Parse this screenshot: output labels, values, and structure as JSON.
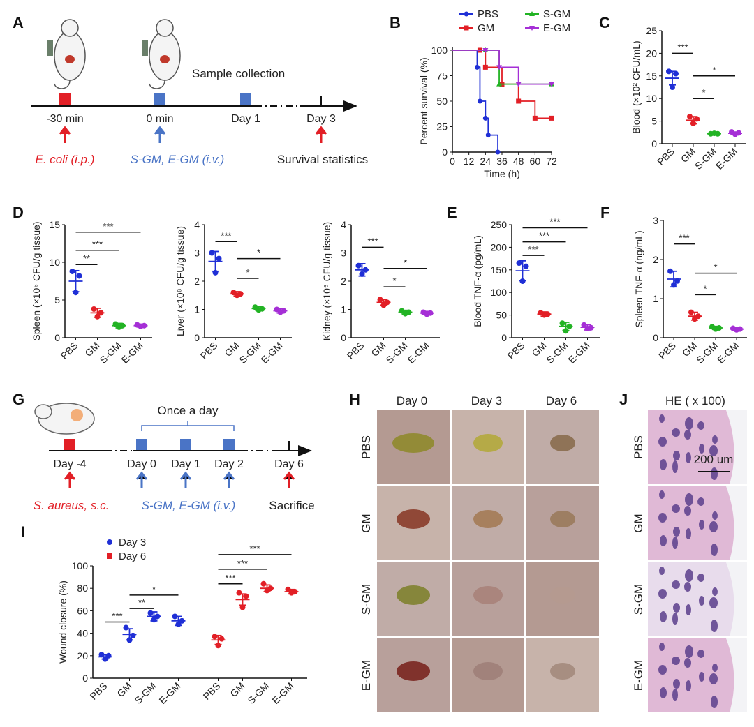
{
  "panels": {
    "A": {
      "label": "A",
      "timeline": [
        "-30 min",
        "0 min",
        "Day 1",
        "Day 3"
      ],
      "sample_collection": "Sample collection",
      "ecoli": "E. coli (i.p.)",
      "treat": "S-GM, E-GM (i.v.)",
      "survival": "Survival statistics"
    },
    "B": {
      "label": "B"
    },
    "C": {
      "label": "C"
    },
    "D": {
      "label": "D"
    },
    "E": {
      "label": "E"
    },
    "F": {
      "label": "F"
    },
    "G": {
      "label": "G",
      "once": "Once a day",
      "timeline": [
        "Day -4",
        "Day 0",
        "Day 1",
        "Day 2",
        "Day 6"
      ],
      "saureus": "S. aureus, s.c.",
      "treat": "S-GM, E-GM (i.v.)",
      "sacrifice": "Sacrifice"
    },
    "H": {
      "label": "H",
      "cols": [
        "Day 0",
        "Day 3",
        "Day 6"
      ],
      "rows": [
        "PBS",
        "GM",
        "S-GM",
        "E-GM"
      ]
    },
    "I": {
      "label": "I"
    },
    "J": {
      "label": "J",
      "title": "HE ( x 100)",
      "rows": [
        "PBS",
        "GM",
        "S-GM",
        "E-GM"
      ],
      "scale": "200 um"
    }
  },
  "colors": {
    "PBS": "#1f2fd6",
    "GM": "#e21f26",
    "S-GM": "#22b324",
    "E-GM": "#a52fd6"
  },
  "chart_data": [
    {
      "id": "B",
      "type": "line",
      "xlabel": "Time (h)",
      "ylabel": "Percent survival (%)",
      "xlim": [
        0,
        72
      ],
      "ylim": [
        0,
        100
      ],
      "xticks": [
        0,
        12,
        24,
        36,
        48,
        60,
        72
      ],
      "yticks": [
        0,
        25,
        50,
        75,
        100
      ],
      "legend": [
        "PBS",
        "GM",
        "S-GM",
        "E-GM"
      ],
      "legend_position": "top",
      "series": [
        {
          "name": "PBS",
          "x": [
            0,
            18,
            20,
            24,
            26,
            33
          ],
          "y": [
            100,
            83.3,
            50,
            33.3,
            16.7,
            0
          ]
        },
        {
          "name": "GM",
          "x": [
            0,
            20,
            24,
            36,
            48,
            60,
            72
          ],
          "y": [
            100,
            100,
            83.3,
            66.7,
            50,
            33.3,
            33.3
          ]
        },
        {
          "name": "S-GM",
          "x": [
            0,
            24,
            34,
            72
          ],
          "y": [
            100,
            100,
            66.7,
            66.7
          ]
        },
        {
          "name": "E-GM",
          "x": [
            0,
            24,
            34,
            48,
            72
          ],
          "y": [
            100,
            100,
            83.3,
            66.7,
            66.7
          ]
        }
      ]
    },
    {
      "id": "C",
      "type": "scatter",
      "ylabel": "Blood (×10² CFU/mL)",
      "ylim": [
        0,
        25
      ],
      "yticks": [
        0,
        5,
        10,
        15,
        20,
        25
      ],
      "categories": [
        "PBS",
        "GM",
        "S-GM",
        "E-GM"
      ],
      "means": [
        14.5,
        5.2,
        2.2,
        2.3
      ],
      "sd": [
        1.5,
        0.8,
        0.2,
        0.3
      ],
      "points": [
        [
          16,
          15.5,
          12.5
        ],
        [
          6,
          5.5,
          4.5
        ],
        [
          2.2,
          2.2,
          2.3
        ],
        [
          2.6,
          2.4,
          2.1
        ]
      ],
      "sig": [
        {
          "a": 0,
          "b": 1,
          "y": 20,
          "t": "***"
        },
        {
          "a": 1,
          "b": 2,
          "y": 10,
          "t": "*"
        },
        {
          "a": 1,
          "b": 3,
          "y": 15,
          "t": "*"
        }
      ]
    },
    {
      "id": "D1",
      "type": "scatter",
      "ylabel": "Spleen (×10⁶ CFU/g tissue)",
      "ylim": [
        0,
        15
      ],
      "yticks": [
        0,
        5,
        10,
        15
      ],
      "categories": [
        "PBS",
        "GM",
        "S-GM",
        "E-GM"
      ],
      "means": [
        7.5,
        3.3,
        1.6,
        1.6
      ],
      "sd": [
        1.4,
        0.6,
        0.3,
        0.2
      ],
      "points": [
        [
          8.8,
          8.2,
          6.0
        ],
        [
          3.8,
          3.3,
          2.8
        ],
        [
          1.8,
          1.6,
          1.4
        ],
        [
          1.7,
          1.6,
          1.5
        ]
      ],
      "sig": [
        {
          "a": 0,
          "b": 1,
          "y": 9.7,
          "t": "**"
        },
        {
          "a": 0,
          "b": 2,
          "y": 11.6,
          "t": "***"
        },
        {
          "a": 0,
          "b": 3,
          "y": 14.0,
          "t": "***"
        }
      ]
    },
    {
      "id": "D2",
      "type": "scatter",
      "ylabel": "Liver (×10⁸ CFU/g tissue)",
      "ylim": [
        0,
        4
      ],
      "yticks": [
        0,
        1,
        2,
        3,
        4
      ],
      "categories": [
        "PBS",
        "GM",
        "S-GM",
        "E-GM"
      ],
      "means": [
        2.7,
        1.55,
        1.03,
        0.95
      ],
      "sd": [
        0.35,
        0.08,
        0.07,
        0.08
      ],
      "points": [
        [
          3.0,
          2.8,
          2.3
        ],
        [
          1.6,
          1.55,
          1.5
        ],
        [
          1.08,
          1.02,
          0.98
        ],
        [
          1.0,
          0.95,
          0.9
        ]
      ],
      "sig": [
        {
          "a": 0,
          "b": 1,
          "y": 3.4,
          "t": "***"
        },
        {
          "a": 1,
          "b": 2,
          "y": 2.1,
          "t": "*"
        },
        {
          "a": 1,
          "b": 3,
          "y": 2.8,
          "t": "*"
        }
      ]
    },
    {
      "id": "D3",
      "type": "scatter",
      "ylabel": "Kidney (×10⁵ CFU/g tissue)",
      "ylim": [
        0,
        4
      ],
      "yticks": [
        0,
        1,
        2,
        3,
        4
      ],
      "categories": [
        "PBS",
        "GM",
        "S-GM",
        "E-GM"
      ],
      "means": [
        2.4,
        1.25,
        0.9,
        0.87
      ],
      "sd": [
        0.22,
        0.1,
        0.07,
        0.06
      ],
      "points": [
        [
          2.55,
          2.4,
          2.25
        ],
        [
          1.35,
          1.25,
          1.15
        ],
        [
          0.95,
          0.9,
          0.85
        ],
        [
          0.9,
          0.87,
          0.83
        ]
      ],
      "sig": [
        {
          "a": 0,
          "b": 1,
          "y": 3.2,
          "t": "***"
        },
        {
          "a": 1,
          "b": 2,
          "y": 1.8,
          "t": "*"
        },
        {
          "a": 1,
          "b": 3,
          "y": 2.45,
          "t": "*"
        }
      ]
    },
    {
      "id": "E",
      "type": "scatter",
      "ylabel": "Blood TNF-α (pg/mL)",
      "ylim": [
        0,
        250
      ],
      "yticks": [
        0,
        50,
        100,
        150,
        200,
        250
      ],
      "categories": [
        "PBS",
        "GM",
        "S-GM",
        "E-GM"
      ],
      "means": [
        148,
        52,
        25,
        23
      ],
      "sd": [
        22,
        5,
        9,
        6
      ],
      "points": [
        [
          165,
          158,
          125
        ],
        [
          55,
          52,
          50
        ],
        [
          32,
          25,
          15
        ],
        [
          28,
          22,
          20
        ]
      ],
      "sig": [
        {
          "a": 0,
          "b": 1,
          "y": 182,
          "t": "***"
        },
        {
          "a": 0,
          "b": 2,
          "y": 212,
          "t": "***"
        },
        {
          "a": 0,
          "b": 3,
          "y": 243,
          "t": "***"
        }
      ]
    },
    {
      "id": "F",
      "type": "scatter",
      "ylabel": "Spleen TNF-α (ng/mL)",
      "ylim": [
        0,
        3
      ],
      "yticks": [
        0,
        1,
        2,
        3
      ],
      "categories": [
        "PBS",
        "GM",
        "S-GM",
        "E-GM"
      ],
      "means": [
        1.5,
        0.55,
        0.25,
        0.22
      ],
      "sd": [
        0.2,
        0.1,
        0.04,
        0.03
      ],
      "points": [
        [
          1.7,
          1.45,
          1.35
        ],
        [
          0.65,
          0.55,
          0.48
        ],
        [
          0.28,
          0.25,
          0.22
        ],
        [
          0.24,
          0.22,
          0.2
        ]
      ],
      "sig": [
        {
          "a": 0,
          "b": 1,
          "y": 2.4,
          "t": "***"
        },
        {
          "a": 1,
          "b": 2,
          "y": 1.1,
          "t": "*"
        },
        {
          "a": 1,
          "b": 3,
          "y": 1.65,
          "t": "*"
        }
      ]
    },
    {
      "id": "I",
      "type": "scatter",
      "ylabel": "Wound closure (%)",
      "ylim": [
        0,
        100
      ],
      "yticks": [
        0,
        20,
        40,
        60,
        80,
        100
      ],
      "categories": [
        "PBS",
        "GM",
        "S-GM",
        "E-GM",
        "PBS",
        "GM",
        "S-GM",
        "E-GM"
      ],
      "legend": [
        "Day 3",
        "Day 6"
      ],
      "legend_position": "top-left",
      "means": [
        19,
        39,
        55,
        51,
        34,
        70,
        80,
        77
      ],
      "sd": [
        2,
        5,
        4,
        4,
        4,
        5,
        3,
        2
      ],
      "points": [
        [
          21,
          20,
          17
        ],
        [
          45,
          38,
          34
        ],
        [
          58,
          55,
          52
        ],
        [
          55,
          51,
          48
        ],
        [
          37,
          35,
          29
        ],
        [
          76,
          73,
          63
        ],
        [
          84,
          80,
          78
        ],
        [
          79,
          77,
          76
        ]
      ],
      "sig": [
        {
          "a": 0,
          "b": 1,
          "y": 50,
          "t": "***"
        },
        {
          "a": 1,
          "b": 2,
          "y": 62,
          "t": "**"
        },
        {
          "a": 1,
          "b": 3,
          "y": 74,
          "t": "*"
        },
        {
          "a": 4,
          "b": 5,
          "y": 84,
          "t": "***"
        },
        {
          "a": 4,
          "b": 6,
          "y": 97,
          "t": "***"
        },
        {
          "a": 4,
          "b": 7,
          "y": 110,
          "t": "***"
        }
      ]
    }
  ]
}
